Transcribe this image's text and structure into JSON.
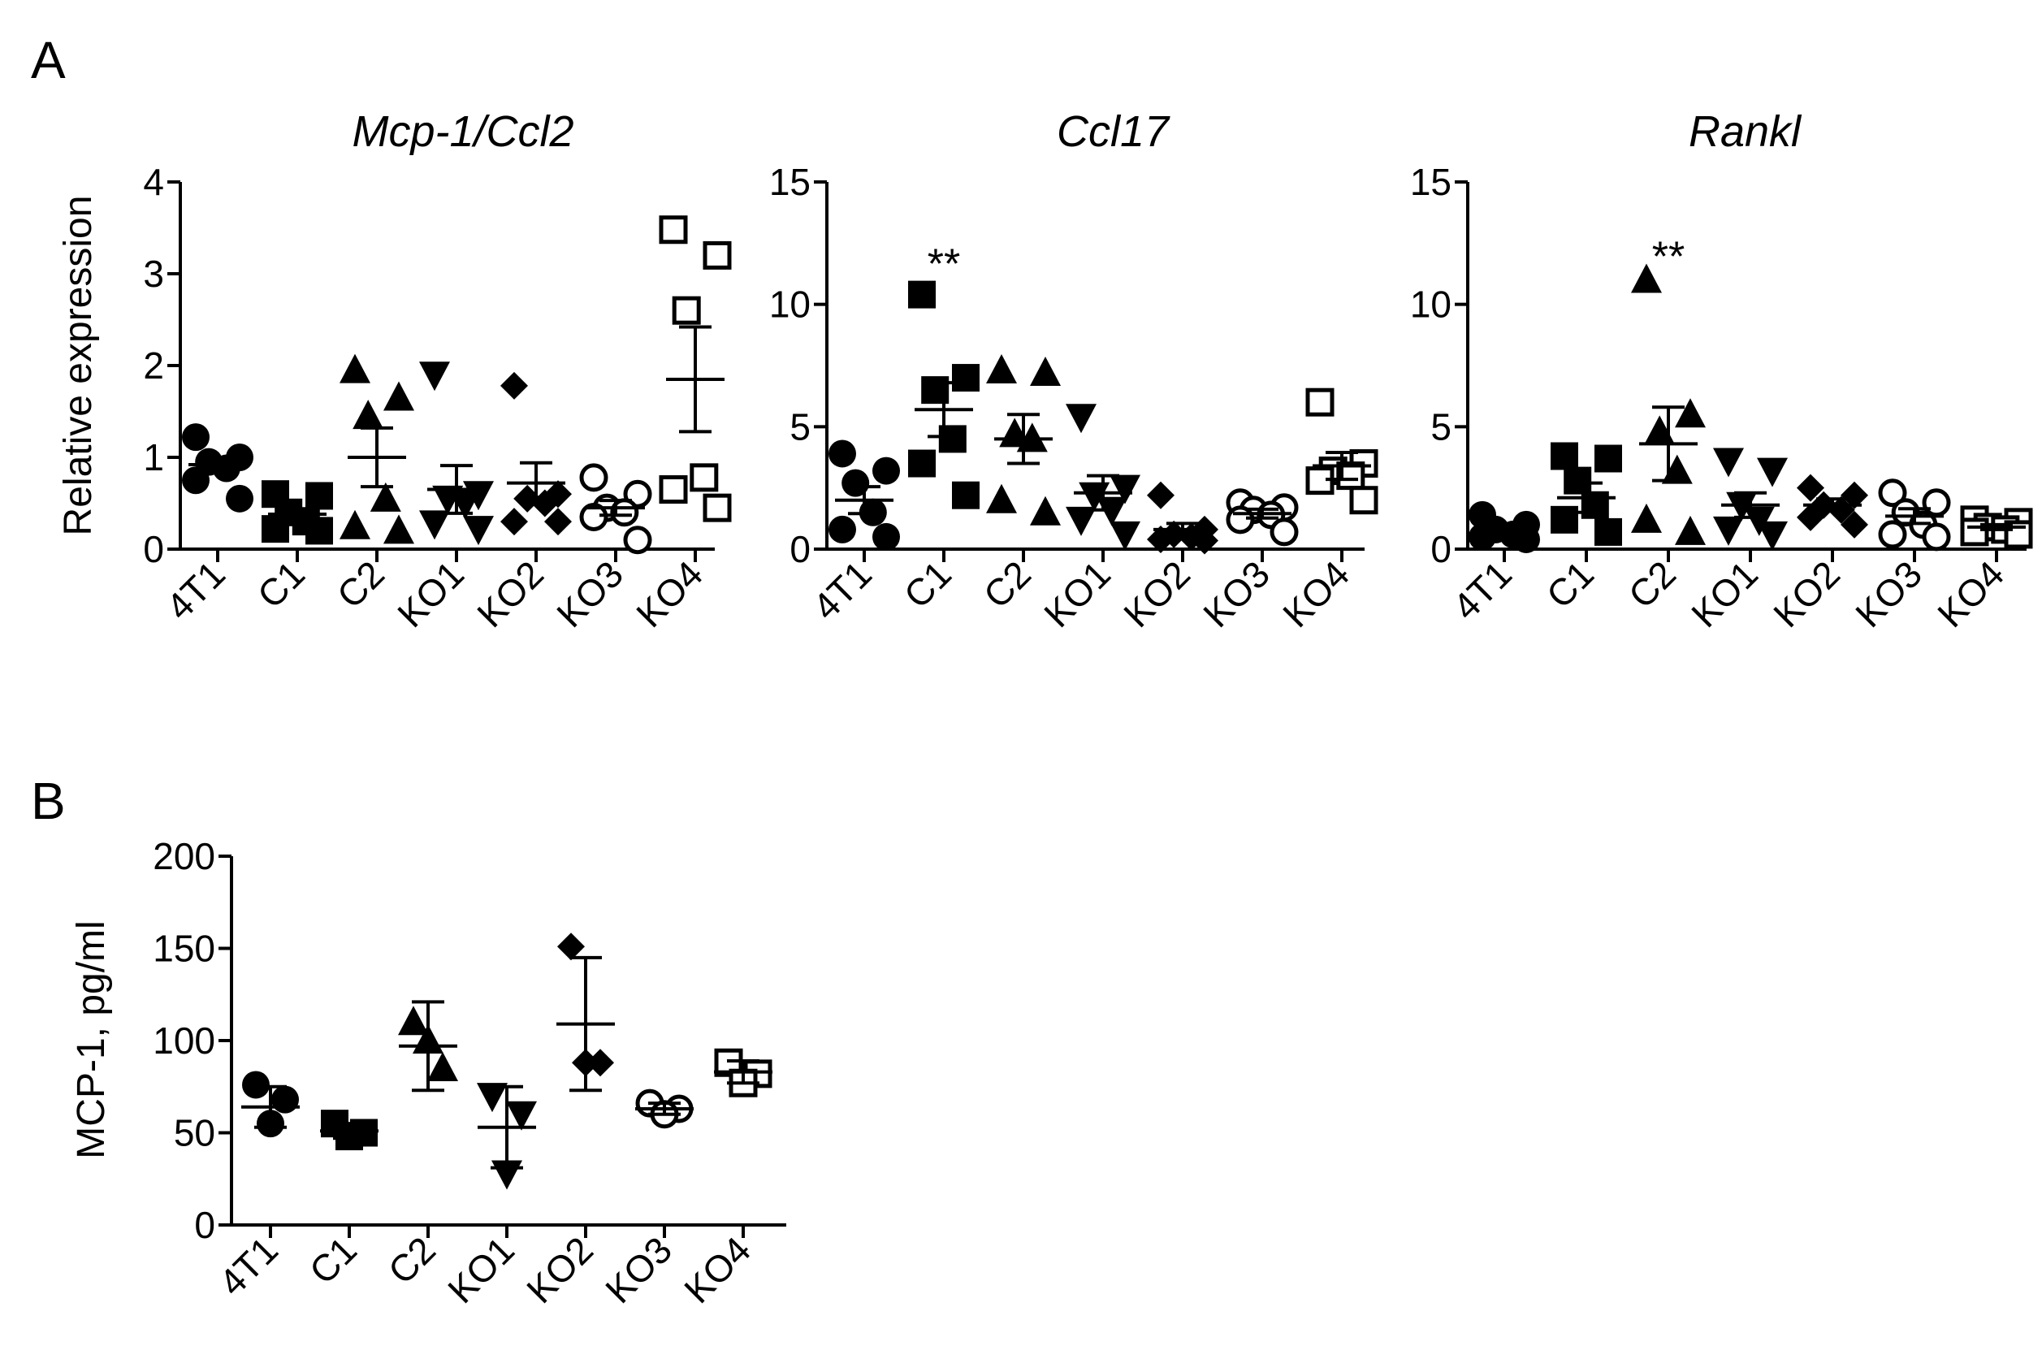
{
  "figure": {
    "panel_labels": [
      "A",
      "B"
    ]
  },
  "chart_data": [
    {
      "id": "mcp1",
      "panel": "A",
      "type": "scatter",
      "title": "Mcp-1/Ccl2",
      "ylabel": "Relative expression",
      "xlabel": "",
      "categories": [
        "4T1",
        "C1",
        "C2",
        "KO1",
        "KO2",
        "KO3",
        "KO4"
      ],
      "ylim": [
        0,
        4
      ],
      "yticks": [
        0,
        1,
        2,
        3,
        4
      ],
      "markers": [
        "circle",
        "square",
        "triangle",
        "triangle-down",
        "diamond",
        "circle-open",
        "square-open"
      ],
      "series": [
        {
          "name": "4T1",
          "values": [
            1.22,
            1.0,
            0.95,
            0.88,
            0.75,
            0.55
          ],
          "mean": 0.92,
          "sem": 0.0
        },
        {
          "name": "C1",
          "values": [
            0.6,
            0.58,
            0.4,
            0.3,
            0.22,
            0.2
          ],
          "mean": 0.38,
          "sem": 0.06
        },
        {
          "name": "C2",
          "values": [
            1.95,
            1.65,
            1.45,
            0.55,
            0.25,
            0.2
          ],
          "mean": 1.0,
          "sem": 0.32
        },
        {
          "name": "KO1",
          "values": [
            1.9,
            0.6,
            0.55,
            0.5,
            0.28,
            0.22
          ],
          "mean": 0.65,
          "sem": 0.26
        },
        {
          "name": "KO2",
          "values": [
            1.78,
            0.6,
            0.55,
            0.5,
            0.3,
            0.3
          ],
          "mean": 0.72,
          "sem": 0.22
        },
        {
          "name": "KO3",
          "values": [
            0.78,
            0.6,
            0.45,
            0.4,
            0.35,
            0.1
          ],
          "mean": 0.45,
          "sem": 0.08
        },
        {
          "name": "KO4",
          "values": [
            3.48,
            3.2,
            2.6,
            0.78,
            0.65,
            0.45
          ],
          "mean": 1.85,
          "sem": 0.57
        }
      ],
      "annotations": []
    },
    {
      "id": "ccl17",
      "panel": "A",
      "type": "scatter",
      "title": "Ccl17",
      "ylabel": "",
      "xlabel": "",
      "categories": [
        "4T1",
        "C1",
        "C2",
        "KO1",
        "KO2",
        "KO3",
        "KO4"
      ],
      "ylim": [
        0,
        15
      ],
      "yticks": [
        0,
        5,
        10,
        15
      ],
      "markers": [
        "circle",
        "square",
        "triangle",
        "triangle-down",
        "diamond",
        "circle-open",
        "square-open"
      ],
      "series": [
        {
          "name": "4T1",
          "values": [
            3.9,
            3.2,
            2.7,
            1.5,
            0.8,
            0.5
          ],
          "mean": 2.0,
          "sem": 0.55
        },
        {
          "name": "C1",
          "values": [
            10.4,
            7.0,
            6.5,
            4.5,
            3.5,
            2.2
          ],
          "mean": 5.7,
          "sem": 1.1
        },
        {
          "name": "C2",
          "values": [
            7.3,
            7.2,
            4.7,
            4.5,
            2.0,
            1.5
          ],
          "mean": 4.5,
          "sem": 1.0
        },
        {
          "name": "KO1",
          "values": [
            5.4,
            2.5,
            2.2,
            1.6,
            1.2,
            0.6
          ],
          "mean": 2.3,
          "sem": 0.7
        },
        {
          "name": "KO2",
          "values": [
            2.2,
            0.8,
            0.6,
            0.5,
            0.4,
            0.35
          ],
          "mean": 0.8,
          "sem": 0.25
        },
        {
          "name": "KO3",
          "values": [
            1.9,
            1.7,
            1.6,
            1.4,
            1.2,
            0.7
          ],
          "mean": 1.45,
          "sem": 0.18
        },
        {
          "name": "KO4",
          "values": [
            6.0,
            3.5,
            3.2,
            3.0,
            2.8,
            2.0
          ],
          "mean": 3.4,
          "sem": 0.55
        }
      ],
      "annotations": [
        {
          "text": "**",
          "category": "C1",
          "y": 12.0
        }
      ]
    },
    {
      "id": "rankl",
      "panel": "A",
      "type": "scatter",
      "title": "Rankl",
      "ylabel": "",
      "xlabel": "",
      "categories": [
        "4T1",
        "C1",
        "C2",
        "KO1",
        "KO2",
        "KO3",
        "KO4"
      ],
      "ylim": [
        0,
        15
      ],
      "yticks": [
        0,
        5,
        10,
        15
      ],
      "markers": [
        "circle",
        "square",
        "triangle",
        "triangle-down",
        "diamond",
        "circle-open",
        "square-open"
      ],
      "series": [
        {
          "name": "4T1",
          "values": [
            1.4,
            1.0,
            0.8,
            0.6,
            0.5,
            0.4
          ],
          "mean": 0.75,
          "sem": 0.15
        },
        {
          "name": "C1",
          "values": [
            3.8,
            3.7,
            2.8,
            1.8,
            1.2,
            0.7
          ],
          "mean": 2.1,
          "sem": 0.6
        },
        {
          "name": "C2",
          "values": [
            11.0,
            5.5,
            4.8,
            3.2,
            1.2,
            0.7
          ],
          "mean": 4.3,
          "sem": 1.5
        },
        {
          "name": "KO1",
          "values": [
            3.6,
            3.2,
            1.8,
            1.2,
            0.8,
            0.6
          ],
          "mean": 1.8,
          "sem": 0.5
        },
        {
          "name": "KO2",
          "values": [
            2.5,
            2.2,
            1.8,
            1.6,
            1.3,
            1.0
          ],
          "mean": 1.8,
          "sem": 0.25
        },
        {
          "name": "KO3",
          "values": [
            2.3,
            1.9,
            1.5,
            1.0,
            0.6,
            0.5
          ],
          "mean": 1.35,
          "sem": 0.3
        },
        {
          "name": "KO4",
          "values": [
            1.2,
            1.1,
            0.9,
            0.8,
            0.7,
            0.6
          ],
          "mean": 0.9,
          "sem": 0.1
        }
      ],
      "annotations": [
        {
          "text": "**",
          "category": "C2",
          "y": 12.3
        }
      ]
    },
    {
      "id": "mcp1_protein",
      "panel": "B",
      "type": "scatter",
      "title": "",
      "ylabel": "MCP-1, pg/ml",
      "xlabel": "",
      "categories": [
        "4T1",
        "C1",
        "C2",
        "KO1",
        "KO2",
        "KO3",
        "KO4"
      ],
      "ylim": [
        0,
        200
      ],
      "yticks": [
        0,
        50,
        100,
        150,
        200
      ],
      "markers": [
        "circle",
        "square",
        "triangle",
        "triangle-down",
        "diamond",
        "circle-open",
        "square-open"
      ],
      "series": [
        {
          "name": "4T1",
          "values": [
            76,
            68,
            55
          ],
          "mean": 64,
          "sd": 11
        },
        {
          "name": "C1",
          "values": [
            55,
            50,
            48
          ],
          "mean": 51,
          "sd": 4
        },
        {
          "name": "C2",
          "values": [
            110,
            85,
            100
          ],
          "mean": 97,
          "sd": 24
        },
        {
          "name": "KO1",
          "values": [
            70,
            60,
            28
          ],
          "mean": 53,
          "sd": 22
        },
        {
          "name": "KO2",
          "values": [
            151,
            88,
            88
          ],
          "mean": 109,
          "sd": 36
        },
        {
          "name": "KO3",
          "values": [
            66,
            63,
            60
          ],
          "mean": 63,
          "sd": 3
        },
        {
          "name": "KO4",
          "values": [
            88,
            82,
            77
          ],
          "mean": 83,
          "sd": 6
        }
      ],
      "annotations": []
    }
  ]
}
